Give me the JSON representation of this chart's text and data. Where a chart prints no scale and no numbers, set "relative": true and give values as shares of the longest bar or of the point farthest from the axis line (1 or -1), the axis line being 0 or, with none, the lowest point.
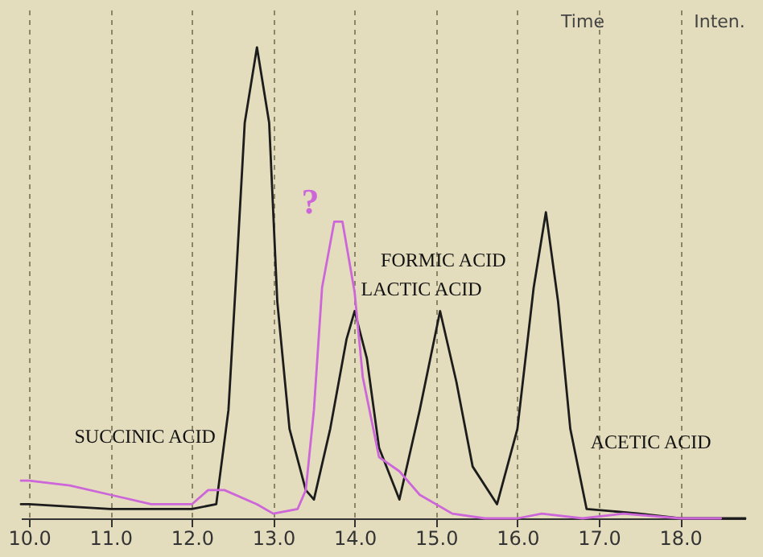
{
  "chart_data": {
    "type": "line",
    "relative": true,
    "grid": "x",
    "xlim": [
      9.9,
      18.8
    ],
    "xticks": [
      {
        "value": 10,
        "label": "10.0"
      },
      {
        "value": 11,
        "label": "11.0"
      },
      {
        "value": 12,
        "label": "12.0"
      },
      {
        "value": 13,
        "label": "13.0"
      },
      {
        "value": 14,
        "label": "14.0"
      },
      {
        "value": 15,
        "label": "15.0"
      },
      {
        "value": 16,
        "label": "16.0"
      },
      {
        "value": 17,
        "label": "17.0"
      },
      {
        "value": 18,
        "label": "18.0"
      }
    ],
    "series": [
      {
        "color": "#1c1c1c",
        "x": [
          9.9,
          10.0,
          11.0,
          12.0,
          12.3,
          12.45,
          12.55,
          12.65,
          12.8,
          12.95,
          13.05,
          13.2,
          13.4,
          13.5,
          13.7,
          13.9,
          14.0,
          14.15,
          14.3,
          14.55,
          14.8,
          15.05,
          15.25,
          15.45,
          15.75,
          16.0,
          16.2,
          16.35,
          16.5,
          16.65,
          16.85,
          17.5,
          18.0,
          18.8
        ],
        "values": [
          0.03,
          0.03,
          0.02,
          0.02,
          0.03,
          0.23,
          0.53,
          0.84,
          1,
          0.84,
          0.46,
          0.19,
          0.06,
          0.04,
          0.19,
          0.38,
          0.44,
          0.34,
          0.15,
          0.04,
          0.23,
          0.44,
          0.29,
          0.11,
          0.03,
          0.19,
          0.49,
          0.65,
          0.46,
          0.19,
          0.02,
          0.01,
          0,
          0
        ]
      },
      {
        "color": "#cc66d9",
        "x": [
          9.9,
          10.0,
          10.5,
          11.0,
          11.5,
          12.0,
          12.2,
          12.4,
          12.8,
          13.0,
          13.3,
          13.4,
          13.5,
          13.6,
          13.75,
          13.85,
          14.0,
          14.1,
          14.3,
          14.55,
          14.8,
          15.2,
          15.6,
          16.0,
          16.3,
          16.8,
          17.3,
          18.0,
          18.5
        ],
        "values": [
          0.08,
          0.08,
          0.07,
          0.05,
          0.03,
          0.03,
          0.06,
          0.06,
          0.03,
          0.01,
          0.02,
          0.06,
          0.23,
          0.49,
          0.63,
          0.63,
          0.48,
          0.3,
          0.13,
          0.1,
          0.05,
          0.01,
          0,
          0,
          0.01,
          0,
          0.01,
          0,
          0
        ]
      }
    ],
    "annotations": [
      {
        "text": "SUCCINIC ACID",
        "x": 12.45,
        "y": 0.25
      },
      {
        "text": "LACTIC ACID",
        "x": 14.0,
        "y": 0.44
      },
      {
        "text": "FORMIC ACID",
        "x": 15.05,
        "y": 0.44
      },
      {
        "text": "ACETIC ACID",
        "x": 16.7,
        "y": 0.23
      },
      {
        "text": "?",
        "x": 13.8,
        "y": 0.63
      },
      "Time",
      "Inten."
    ]
  }
}
